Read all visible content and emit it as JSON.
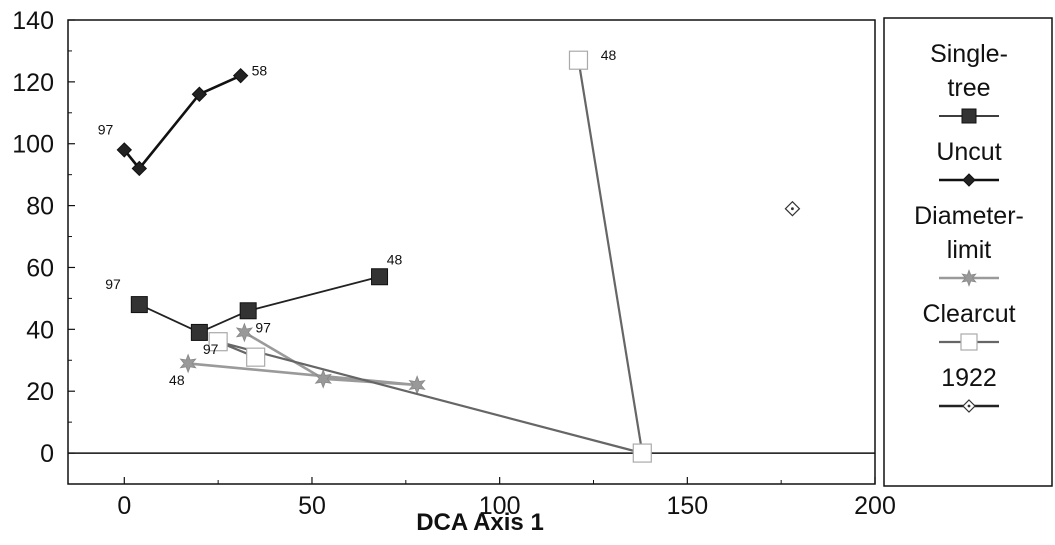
{
  "chart_data": {
    "type": "scatter",
    "title": "",
    "xlabel": "DCA Axis 1",
    "ylabel": "",
    "xlim": [
      -15,
      200
    ],
    "ylim": [
      -10,
      140
    ],
    "x_ticks": [
      "0",
      "50",
      "100",
      "150",
      "200"
    ],
    "y_ticks": [
      "0",
      "20",
      "40",
      "60",
      "80",
      "100",
      "120",
      "140"
    ],
    "x_tick_values": [
      0,
      50,
      100,
      150,
      200
    ],
    "y_tick_values": [
      0,
      20,
      40,
      60,
      80,
      100,
      120,
      140
    ],
    "grid": false,
    "legend_position": "right",
    "series": [
      {
        "name": "Single-tree",
        "legend_lines": [
          "Single-",
          "tree"
        ],
        "marker": "square",
        "color": "#333333",
        "points": [
          [
            4,
            48
          ],
          [
            20,
            39
          ],
          [
            33,
            46
          ],
          [
            68,
            57
          ]
        ]
      },
      {
        "name": "Uncut",
        "legend_lines": [
          "Uncut"
        ],
        "marker": "diamond",
        "color": "#222222",
        "points": [
          [
            0,
            98
          ],
          [
            4,
            92
          ],
          [
            20,
            116
          ],
          [
            31,
            122
          ]
        ]
      },
      {
        "name": "Diameter-limit",
        "legend_lines": [
          "Diameter-",
          "limit"
        ],
        "marker": "star",
        "color": "#999999",
        "points": [
          [
            32,
            39
          ],
          [
            53,
            24
          ],
          [
            78,
            22
          ],
          [
            17,
            29
          ]
        ]
      },
      {
        "name": "Clearcut",
        "legend_lines": [
          "Clearcut"
        ],
        "marker": "open-square",
        "color": "#777777",
        "points": [
          [
            121,
            127
          ],
          [
            138,
            0
          ],
          [
            25,
            36
          ],
          [
            35,
            31
          ]
        ]
      },
      {
        "name": "1922",
        "legend_lines": [
          "1922"
        ],
        "marker": "open-diamond",
        "color": "#333333",
        "points": [
          [
            178,
            79
          ]
        ]
      }
    ],
    "annotations": [
      {
        "text": "97",
        "x": -5,
        "y": 103
      },
      {
        "text": "58",
        "x": 36,
        "y": 122
      },
      {
        "text": "97",
        "x": -3,
        "y": 53
      },
      {
        "text": "48",
        "x": 72,
        "y": 61
      },
      {
        "text": "97",
        "x": 37,
        "y": 39
      },
      {
        "text": "97",
        "x": 23,
        "y": 32
      },
      {
        "text": "48",
        "x": 14,
        "y": 22
      },
      {
        "text": "48",
        "x": 129,
        "y": 127
      }
    ]
  }
}
